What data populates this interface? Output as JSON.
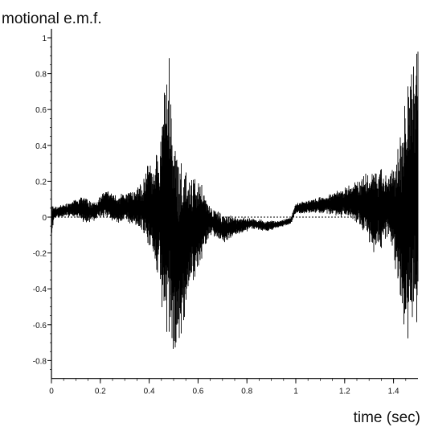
{
  "chart_data": {
    "type": "line",
    "title": "",
    "ylabel": "motional e.m.f.",
    "xlabel": "time (sec)",
    "xlim": [
      0,
      1.5
    ],
    "ylim": [
      -0.9,
      1.05
    ],
    "xticks": [
      0,
      0.2,
      0.4,
      0.6,
      0.8,
      1,
      1.2,
      1.4
    ],
    "xtick_labels": [
      "0",
      "0.2",
      "0.4",
      "0.6",
      "0.8",
      "1",
      "1.2",
      "1.4"
    ],
    "yticks": [
      -0.8,
      -0.6,
      -0.4,
      -0.2,
      0,
      0.2,
      0.4,
      0.6,
      0.8,
      1
    ],
    "ytick_labels": [
      "-0.8",
      "-0.6",
      "-0.4",
      "-0.2",
      "0",
      "0.2",
      "0.4",
      "0.6",
      "0.8",
      "1"
    ],
    "zero_line": "dotted",
    "grid": false,
    "series": [
      {
        "color": "#000000",
        "envelope": {
          "x": [
            0.0,
            0.01,
            0.04,
            0.08,
            0.12,
            0.15,
            0.18,
            0.22,
            0.27,
            0.3,
            0.34,
            0.38,
            0.4,
            0.42,
            0.44,
            0.46,
            0.48,
            0.5,
            0.52,
            0.55,
            0.58,
            0.62,
            0.65,
            0.7,
            0.76,
            0.82,
            0.88,
            0.93,
            0.98,
            1.0,
            1.06,
            1.12,
            1.18,
            1.24,
            1.28,
            1.32,
            1.35,
            1.38,
            1.4,
            1.42,
            1.44,
            1.46,
            1.48,
            1.5
          ],
          "upper": [
            0.08,
            0.06,
            0.07,
            0.09,
            0.12,
            0.1,
            0.09,
            0.16,
            0.12,
            0.14,
            0.16,
            0.22,
            0.33,
            0.3,
            0.42,
            0.76,
            0.95,
            0.6,
            0.32,
            0.3,
            0.26,
            0.2,
            0.06,
            0.02,
            0.0,
            0.0,
            -0.02,
            -0.02,
            0.0,
            0.08,
            0.1,
            0.12,
            0.16,
            0.2,
            0.24,
            0.3,
            0.3,
            0.25,
            0.32,
            0.4,
            0.56,
            0.78,
            0.9,
            1.0
          ],
          "lower": [
            -0.12,
            -0.02,
            0.0,
            0.0,
            -0.02,
            -0.04,
            -0.02,
            0.0,
            -0.04,
            -0.02,
            -0.06,
            -0.12,
            -0.16,
            -0.28,
            -0.4,
            -0.6,
            -0.72,
            -0.88,
            -0.75,
            -0.55,
            -0.4,
            -0.24,
            -0.1,
            -0.15,
            -0.1,
            -0.07,
            -0.08,
            -0.06,
            -0.04,
            0.02,
            0.02,
            0.02,
            0.0,
            -0.03,
            -0.1,
            -0.22,
            -0.2,
            -0.1,
            -0.25,
            -0.42,
            -0.62,
            -0.7,
            -0.68,
            -0.68
          ]
        }
      }
    ]
  }
}
